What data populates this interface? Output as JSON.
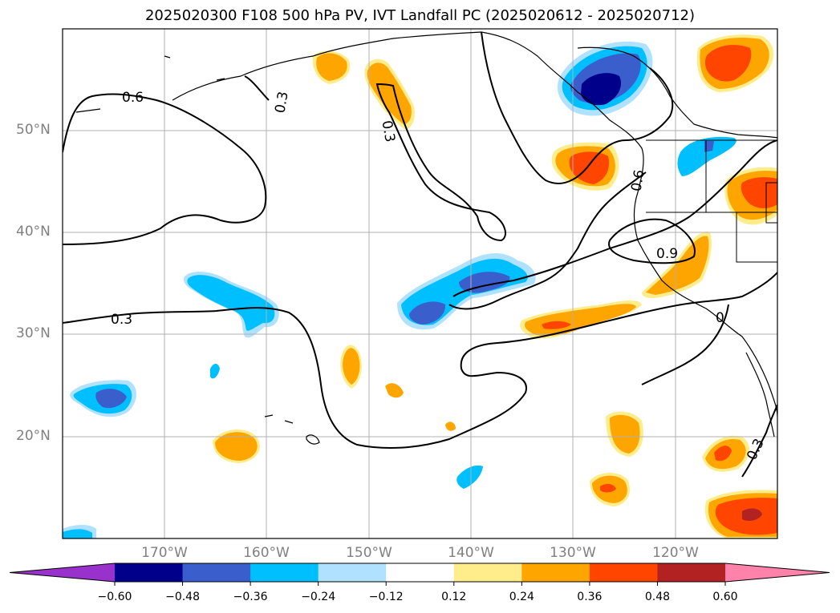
{
  "title": "2025020300 F108 500 hPa PV, IVT Landfall PC (2025020612 - 2025020712)",
  "map": {
    "lon_range": [
      -180,
      -110
    ],
    "lat_range": [
      10,
      60
    ],
    "lat_labels": [
      "50°N",
      "40°N",
      "30°N",
      "20°N"
    ],
    "lon_labels": [
      "170°W",
      "160°W",
      "150°W",
      "140°W",
      "130°W",
      "120°W"
    ],
    "contour_labels": [
      "0.6",
      "0.3",
      "0.3",
      "0.3",
      "0.6",
      "0.9",
      "0",
      "0.3"
    ]
  },
  "colorbar": {
    "ticks": [
      "−0.60",
      "−0.48",
      "−0.36",
      "−0.24",
      "−0.12",
      "0.12",
      "0.24",
      "0.36",
      "0.48",
      "0.60"
    ],
    "colors": [
      "#9932cc",
      "#00008b",
      "#3a5fcd",
      "#00bfff",
      "#b0e2ff",
      "#ffffff",
      "#ffec8b",
      "#ffa500",
      "#ff4500",
      "#b22222",
      "#ff82ab"
    ]
  }
}
